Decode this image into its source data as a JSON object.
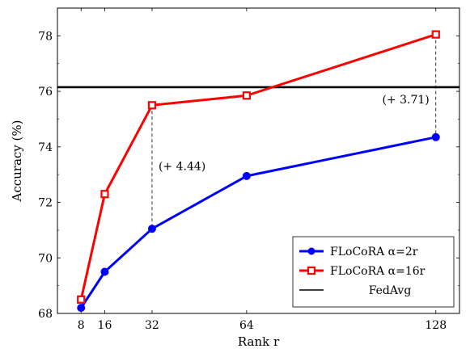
{
  "chart_data": {
    "type": "line",
    "xlabel": "Rank r",
    "ylabel": "Accuracy (%)",
    "x": [
      8,
      16,
      32,
      64,
      128
    ],
    "xticks": [
      "8",
      "16",
      "32",
      "64",
      "128"
    ],
    "yticks": [
      "68",
      "70",
      "72",
      "74",
      "76",
      "78"
    ],
    "xlim": [
      0,
      136
    ],
    "ylim": [
      68,
      79
    ],
    "series": [
      {
        "name": "FLoCoRA α=2r",
        "color": "#0000ff",
        "marker": "circle",
        "values": [
          68.2,
          69.5,
          71.05,
          72.95,
          74.35
        ]
      },
      {
        "name": "FLoCoRA α=16r",
        "color": "#ff0000",
        "marker": "square",
        "values": [
          68.5,
          72.3,
          75.5,
          75.85,
          78.05
        ]
      }
    ],
    "baseline": {
      "name": "FedAvg",
      "color": "#000000",
      "value": 76.15
    },
    "annotations": [
      {
        "text": "(+ 4.44)",
        "x": 32
      },
      {
        "text": "(+ 3.71)",
        "x": 128
      }
    ],
    "legend_position": "bottom-right",
    "grid": false
  }
}
